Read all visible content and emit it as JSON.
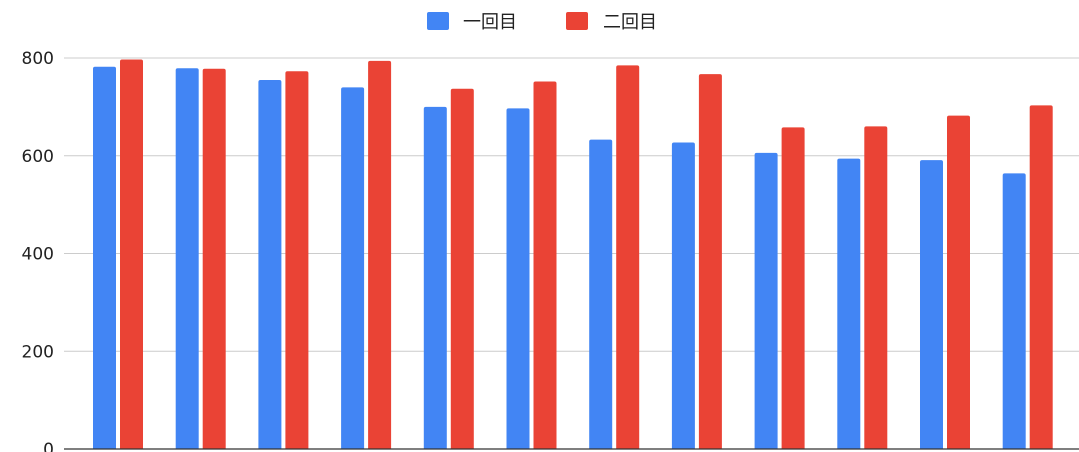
{
  "chart_data": {
    "type": "bar",
    "categories": [
      "",
      "",
      "",
      "",
      "",
      "",
      "",
      "",
      "",
      "",
      "",
      ""
    ],
    "series": [
      {
        "name": "一回目",
        "color": "#4285f4",
        "values": [
          782,
          779,
          755,
          740,
          700,
          697,
          633,
          627,
          606,
          594,
          591,
          564
        ]
      },
      {
        "name": "二回目",
        "color": "#ea4335",
        "values": [
          797,
          778,
          773,
          794,
          737,
          752,
          785,
          767,
          658,
          660,
          682,
          703
        ]
      }
    ],
    "ylim": [
      0,
      800
    ],
    "yticks": [
      0,
      200,
      400,
      600,
      800
    ],
    "grid": true,
    "legend_position": "top"
  }
}
